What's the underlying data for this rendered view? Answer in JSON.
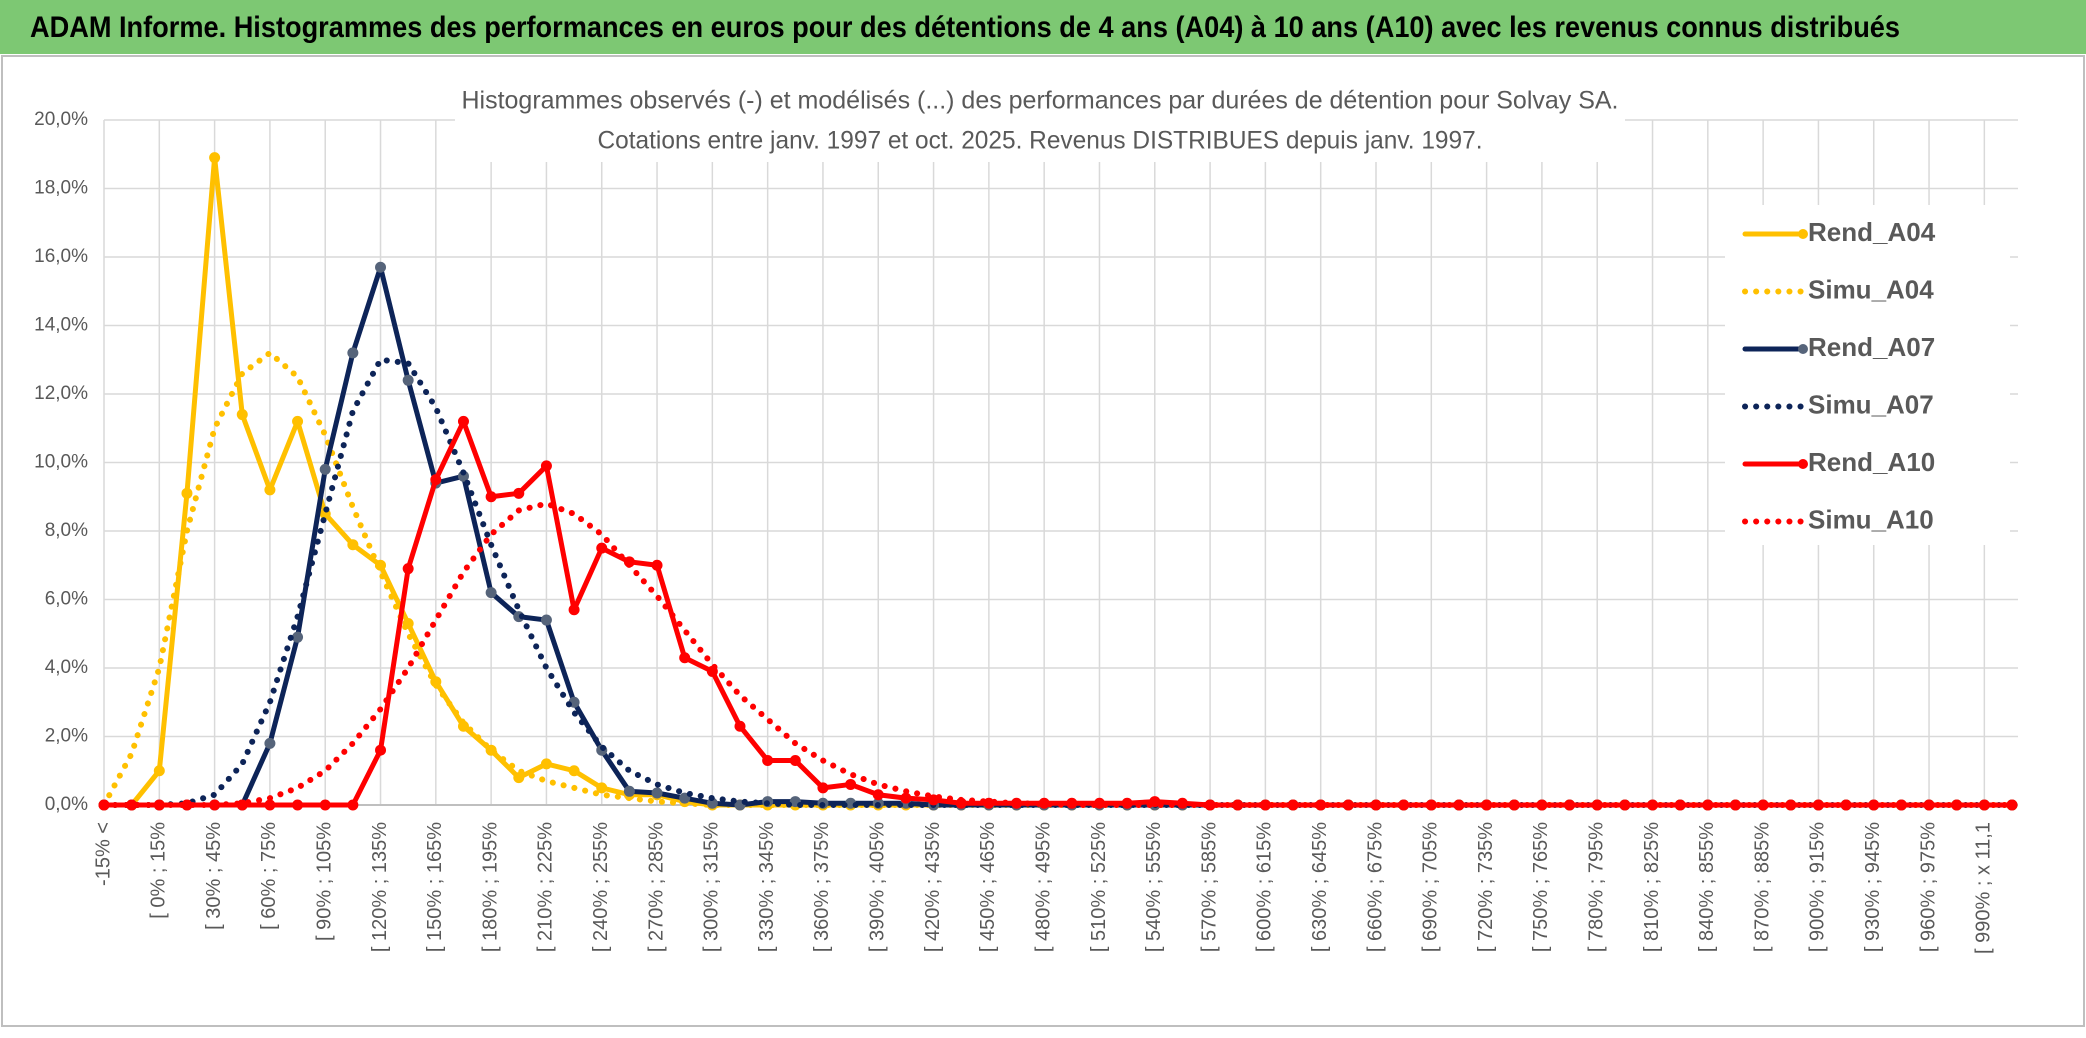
{
  "header": {
    "title": "ADAM Informe. Histogrammes des performances en euros pour des détentions de 4 ans (A04) à 10 ans (A10) avec les revenus connus distribués"
  },
  "chart_data": {
    "type": "line",
    "title": [
      "Histogrammes observés (-) et modélisés (...) des performances par durées de détention pour Solvay SA.",
      "Cotations entre janv. 1997 et oct. 2025. Revenus DISTRIBUES depuis janv. 1997."
    ],
    "categories": [
      "-15% <",
      null,
      "[ 0% ; 15%",
      null,
      "[ 30% ; 45%",
      null,
      "[ 60% ; 75%",
      null,
      "[ 90% ; 105%",
      null,
      "[ 120% ; 135%",
      null,
      "[ 150% ; 165%",
      null,
      "[ 180% ; 195%",
      null,
      "[ 210% ; 225%",
      null,
      "[ 240% ; 255%",
      null,
      "[ 270% ; 285%",
      null,
      "[ 300% ; 315%",
      null,
      "[ 330% ; 345%",
      null,
      "[ 360% ; 375%",
      null,
      "[ 390% ; 405%",
      null,
      "[ 420% ; 435%",
      null,
      "[ 450% ; 465%",
      null,
      "[ 480% ; 495%",
      null,
      "[ 510% ; 525%",
      null,
      "[ 540% ; 555%",
      null,
      "[ 570% ; 585%",
      null,
      "[ 600% ; 615%",
      null,
      "[ 630% ; 645%",
      null,
      "[ 660% ; 675%",
      null,
      "[ 690% ; 705%",
      null,
      "[ 720% ; 735%",
      null,
      "[ 750% ; 765%",
      null,
      "[ 780% ; 795%",
      null,
      "[ 810% ; 825%",
      null,
      "[ 840% ; 855%",
      null,
      "[ 870% ; 885%",
      null,
      "[ 900% ; 915%",
      null,
      "[ 930% ; 945%",
      null,
      "[ 960% ; 975%",
      null,
      "[ 990% ; x 11,1",
      null
    ],
    "series": [
      {
        "name": "Rend_A04",
        "color": "#ffc000",
        "style": "solid",
        "markers": true,
        "marker_color": "#ffc000",
        "values": [
          0,
          0,
          1.0,
          9.1,
          18.9,
          11.4,
          9.2,
          11.2,
          8.5,
          7.6,
          7.0,
          5.3,
          3.6,
          2.3,
          1.6,
          0.8,
          1.2,
          1.0,
          0.5,
          0.3,
          0.3,
          0.1,
          0,
          0,
          0,
          0,
          0,
          0,
          0,
          0,
          0,
          0,
          0,
          0,
          0,
          0,
          0,
          0,
          0,
          0,
          0,
          0,
          0,
          0,
          0,
          0,
          0,
          0,
          0,
          0,
          0,
          0,
          0,
          0,
          0,
          0,
          0,
          0,
          0,
          0,
          0,
          0,
          0,
          0,
          0,
          0,
          0,
          0,
          0,
          0
        ]
      },
      {
        "name": "Simu_A04",
        "color": "#ffc000",
        "style": "dotted",
        "markers": false,
        "values": [
          0,
          1.5,
          4.0,
          8.0,
          11.0,
          12.6,
          13.2,
          12.5,
          10.8,
          8.7,
          6.8,
          5.0,
          3.5,
          2.4,
          1.6,
          1.0,
          0.7,
          0.5,
          0.3,
          0.2,
          0.1,
          0.05,
          0,
          0,
          0,
          0,
          0,
          0,
          0,
          0,
          0,
          0,
          0,
          0,
          0,
          0,
          0,
          0,
          0,
          0,
          0,
          0,
          0,
          0,
          0,
          0,
          0,
          0,
          0,
          0,
          0,
          0,
          0,
          0,
          0,
          0,
          0,
          0,
          0,
          0,
          0,
          0,
          0,
          0,
          0,
          0,
          0,
          0,
          0,
          0
        ]
      },
      {
        "name": "Rend_A07",
        "color": "#0d2458",
        "style": "solid",
        "markers": true,
        "marker_color": "#56647a",
        "values": [
          0,
          0,
          0,
          0,
          0,
          0,
          1.8,
          4.9,
          9.8,
          13.2,
          15.7,
          12.4,
          9.4,
          9.6,
          6.2,
          5.5,
          5.4,
          3.0,
          1.6,
          0.4,
          0.35,
          0.2,
          0.05,
          0,
          0.1,
          0.1,
          0.05,
          0.05,
          0.05,
          0.05,
          0,
          0,
          0,
          0,
          0,
          0,
          0,
          0,
          0,
          0,
          0,
          0,
          0,
          0,
          0,
          0,
          0,
          0,
          0,
          0,
          0,
          0,
          0,
          0,
          0,
          0,
          0,
          0,
          0,
          0,
          0,
          0,
          0,
          0,
          0,
          0,
          0,
          0,
          0,
          0
        ]
      },
      {
        "name": "Simu_A07",
        "color": "#0d2458",
        "style": "dotted",
        "markers": false,
        "values": [
          0,
          0,
          0,
          0.05,
          0.3,
          1.2,
          3.0,
          5.5,
          8.5,
          11.5,
          13.0,
          12.9,
          11.6,
          9.7,
          7.6,
          5.7,
          4.0,
          2.7,
          1.7,
          1.0,
          0.6,
          0.35,
          0.2,
          0.1,
          0.05,
          0,
          0,
          0,
          0,
          0,
          0,
          0,
          0,
          0,
          0,
          0,
          0,
          0,
          0,
          0,
          0,
          0,
          0,
          0,
          0,
          0,
          0,
          0,
          0,
          0,
          0,
          0,
          0,
          0,
          0,
          0,
          0,
          0,
          0,
          0,
          0,
          0,
          0,
          0,
          0,
          0,
          0,
          0,
          0,
          0
        ]
      },
      {
        "name": "Rend_A10",
        "color": "#ff0000",
        "style": "solid",
        "markers": true,
        "marker_color": "#ff0000",
        "values": [
          0,
          0,
          0,
          0,
          0,
          0,
          0,
          0,
          0,
          0,
          1.6,
          6.9,
          9.5,
          11.2,
          9.0,
          9.1,
          9.9,
          5.7,
          7.5,
          7.1,
          7.0,
          4.3,
          3.9,
          2.3,
          1.3,
          1.3,
          0.5,
          0.6,
          0.3,
          0.2,
          0.15,
          0.05,
          0.05,
          0.05,
          0.05,
          0.05,
          0.05,
          0.05,
          0.1,
          0.05,
          0,
          0,
          0,
          0,
          0,
          0,
          0,
          0,
          0,
          0,
          0,
          0,
          0,
          0,
          0,
          0,
          0,
          0,
          0,
          0,
          0,
          0,
          0,
          0,
          0,
          0,
          0,
          0,
          0,
          0
        ]
      },
      {
        "name": "Simu_A10",
        "color": "#ff0000",
        "style": "dotted",
        "markers": false,
        "values": [
          0,
          0,
          0,
          0,
          0,
          0.05,
          0.2,
          0.5,
          1.0,
          1.8,
          2.8,
          4.0,
          5.4,
          6.8,
          7.9,
          8.6,
          8.8,
          8.5,
          7.9,
          7.0,
          6.1,
          5.1,
          4.1,
          3.2,
          2.5,
          1.8,
          1.3,
          0.9,
          0.6,
          0.4,
          0.25,
          0.15,
          0.1,
          0.05,
          0.03,
          0,
          0,
          0,
          0,
          0,
          0,
          0,
          0,
          0,
          0,
          0,
          0,
          0,
          0,
          0,
          0,
          0,
          0,
          0,
          0,
          0,
          0,
          0,
          0,
          0,
          0,
          0,
          0,
          0,
          0,
          0,
          0,
          0,
          0,
          0
        ]
      }
    ],
    "ylim": [
      0,
      20
    ],
    "yticks": [
      {
        "value": 0,
        "label": "0,0%"
      },
      {
        "value": 2,
        "label": "2,0%"
      },
      {
        "value": 4,
        "label": "4,0%"
      },
      {
        "value": 6,
        "label": "6,0%"
      },
      {
        "value": 8,
        "label": "8,0%"
      },
      {
        "value": 10,
        "label": "10,0%"
      },
      {
        "value": 12,
        "label": "12,0%"
      },
      {
        "value": 14,
        "label": "14,0%"
      },
      {
        "value": 16,
        "label": "16,0%"
      },
      {
        "value": 18,
        "label": "18,0%"
      },
      {
        "value": 20,
        "label": "20,0%"
      }
    ],
    "grid": true,
    "legend": "right"
  }
}
